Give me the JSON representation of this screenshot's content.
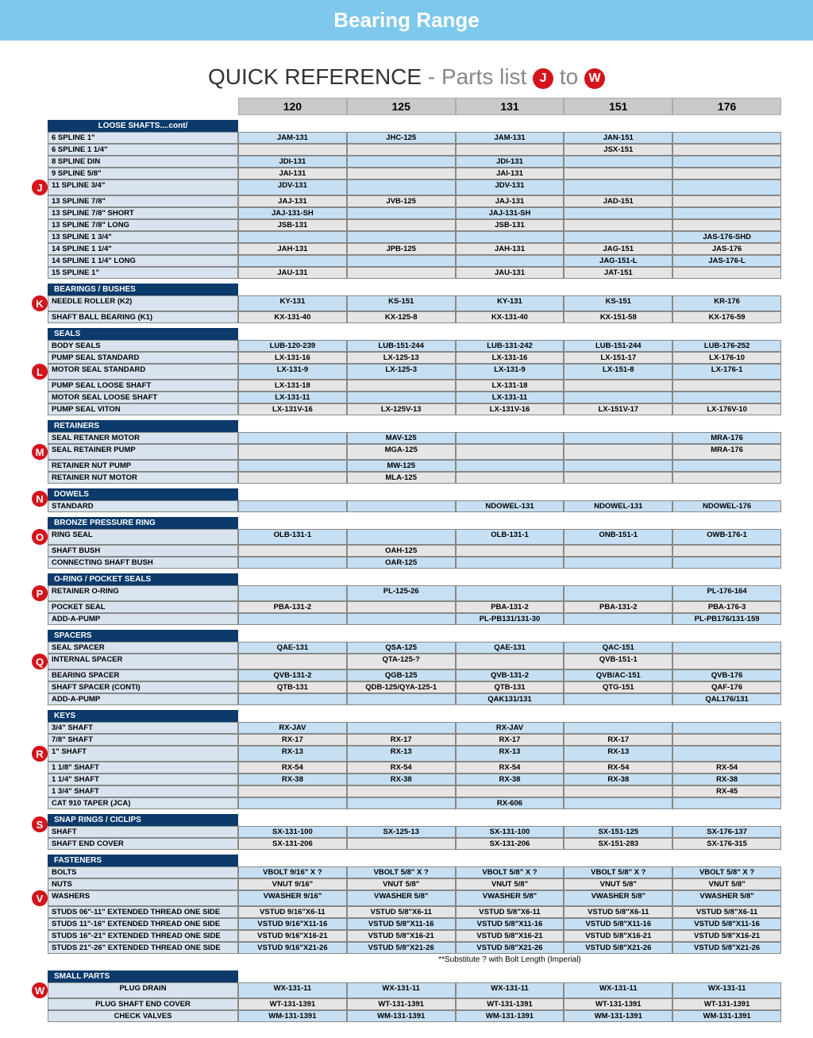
{
  "banner": "Bearing Range",
  "title_main": "QUICK REFERENCE",
  "title_sub": "- Parts list",
  "title_badge_from": "J",
  "title_to": "to",
  "title_badge_to": "W",
  "columns": [
    "120",
    "125",
    "131",
    "151",
    "176"
  ],
  "footnote": "**Substitute ? with Bolt Length (Imperial)",
  "colors": {
    "banner_bg": "#7ec8ed",
    "header_bg": "#0b3a6b",
    "badge_bg": "#d4131b",
    "cell_blue": "#c6dff2",
    "cell_grey": "#e5e5e5",
    "label_bg": "#d8e3ef",
    "colhdr_bg": "#c9c9c9"
  },
  "sections": [
    {
      "letter": "J",
      "letter_row": 4,
      "header": "LOOSE SHAFTS....cont/",
      "header_align": "center",
      "rows": [
        {
          "label": "6 SPLINE 1\"",
          "vals": [
            "JAM-131",
            "JHC-125",
            "JAM-131",
            "JAN-151",
            ""
          ],
          "shade": "blue"
        },
        {
          "label": "6 SPLINE 1 1/4\"",
          "vals": [
            "",
            "",
            "",
            "JSX-151",
            ""
          ],
          "shade": "grey"
        },
        {
          "label": "8 SPLINE DIN",
          "vals": [
            "JDI-131",
            "",
            "JDI-131",
            "",
            ""
          ],
          "shade": "blue"
        },
        {
          "label": "9 SPLINE 5/8\"",
          "vals": [
            "JAI-131",
            "",
            "JAI-131",
            "",
            ""
          ],
          "shade": "grey"
        },
        {
          "label": "11 SPLINE 3/4\"",
          "vals": [
            "JDV-131",
            "",
            "JDV-131",
            "",
            ""
          ],
          "shade": "blue"
        },
        {
          "label": "13 SPLINE 7/8\"",
          "vals": [
            "JAJ-131",
            "JVB-125",
            "JAJ-131",
            "JAD-151",
            ""
          ],
          "shade": "grey"
        },
        {
          "label": "13 SPLINE 7/8\" SHORT",
          "vals": [
            "JAJ-131-SH",
            "",
            "JAJ-131-SH",
            "",
            ""
          ],
          "shade": "blue"
        },
        {
          "label": "13 SPLINE 7/8\" LONG",
          "vals": [
            "JSB-131",
            "",
            "JSB-131",
            "",
            ""
          ],
          "shade": "grey"
        },
        {
          "label": "13 SPLINE 1 3/4\"",
          "vals": [
            "",
            "",
            "",
            "",
            "JAS-176-SHD"
          ],
          "shade": "blue"
        },
        {
          "label": "14 SPLINE 1 1/4\"",
          "vals": [
            "JAH-131",
            "JPB-125",
            "JAH-131",
            "JAG-151",
            "JAS-176"
          ],
          "shade": "grey"
        },
        {
          "label": "14 SPLINE 1 1/4\" LONG",
          "vals": [
            "",
            "",
            "",
            "JAG-151-L",
            "JAS-176-L"
          ],
          "shade": "blue"
        },
        {
          "label": "15 SPLINE 1\"",
          "vals": [
            "JAU-131",
            "",
            "JAU-131",
            "JAT-151",
            ""
          ],
          "shade": "grey"
        }
      ]
    },
    {
      "letter": "K",
      "letter_row": 0,
      "header": "BEARINGS / BUSHES",
      "header_align": "left",
      "rows": [
        {
          "label": "NEEDLE ROLLER (K2)",
          "vals": [
            "KY-131",
            "KS-151",
            "KY-131",
            "KS-151",
            "KR-176"
          ],
          "shade": "blue"
        },
        {
          "label": "SHAFT BALL BEARING (K1)",
          "vals": [
            "KX-131-40",
            "KX-125-8",
            "KX-131-40",
            "KX-151-58",
            "KX-176-59"
          ],
          "shade": "grey"
        }
      ]
    },
    {
      "letter": "L",
      "letter_row": 2,
      "header": "SEALS",
      "header_align": "left",
      "rows": [
        {
          "label": "BODY SEALS",
          "vals": [
            "LUB-120-239",
            "LUB-151-244",
            "LUB-131-242",
            "LUB-151-244",
            "LUB-176-252"
          ],
          "shade": "blue"
        },
        {
          "label": "PUMP SEAL STANDARD",
          "vals": [
            "LX-131-16",
            "LX-125-13",
            "LX-131-16",
            "LX-151-17",
            "LX-176-10"
          ],
          "shade": "grey"
        },
        {
          "label": "MOTOR SEAL STANDARD",
          "vals": [
            "LX-131-9",
            "LX-125-3",
            "LX-131-9",
            "LX-151-8",
            "LX-176-1"
          ],
          "shade": "blue"
        },
        {
          "label": "PUMP SEAL LOOSE SHAFT",
          "vals": [
            "LX-131-18",
            "",
            "LX-131-18",
            "",
            ""
          ],
          "shade": "grey"
        },
        {
          "label": "MOTOR SEAL LOOSE SHAFT",
          "vals": [
            "LX-131-11",
            "",
            "LX-131-11",
            "",
            ""
          ],
          "shade": "blue"
        },
        {
          "label": "PUMP SEAL VITON",
          "vals": [
            "LX-131V-16",
            "LX-125V-13",
            "LX-131V-16",
            "LX-151V-17",
            "LX-176V-10"
          ],
          "shade": "grey"
        }
      ]
    },
    {
      "letter": "M",
      "letter_row": 1,
      "header": "RETAINERS",
      "header_align": "left",
      "rows": [
        {
          "label": "SEAL RETANER MOTOR",
          "vals": [
            "",
            "MAV-125",
            "",
            "",
            "MRA-176"
          ],
          "shade": "blue"
        },
        {
          "label": "SEAL RETAINER PUMP",
          "vals": [
            "",
            "MGA-125",
            "",
            "",
            "MRA-176"
          ],
          "shade": "grey"
        },
        {
          "label": "RETAINER NUT PUMP",
          "vals": [
            "",
            "MW-125",
            "",
            "",
            ""
          ],
          "shade": "blue"
        },
        {
          "label": "RETAINER NUT MOTOR",
          "vals": [
            "",
            "MLA-125",
            "",
            "",
            ""
          ],
          "shade": "grey"
        }
      ]
    },
    {
      "letter": "N",
      "letter_row": -1,
      "header": "DOWELS",
      "header_align": "left",
      "rows": [
        {
          "label": "STANDARD",
          "vals": [
            "",
            "",
            "NDOWEL-131",
            "NDOWEL-131",
            "NDOWEL-176"
          ],
          "shade": "blue"
        }
      ]
    },
    {
      "letter": "O",
      "letter_row": 0,
      "header": "BRONZE PRESSURE RING",
      "header_align": "left",
      "rows": [
        {
          "label": "RING SEAL",
          "vals": [
            "OLB-131-1",
            "",
            "OLB-131-1",
            "ONB-151-1",
            "OWB-176-1"
          ],
          "shade": "blue"
        },
        {
          "label": "SHAFT BUSH",
          "vals": [
            "",
            "OAH-125",
            "",
            "",
            ""
          ],
          "shade": "grey"
        },
        {
          "label": "CONNECTING SHAFT BUSH",
          "vals": [
            "",
            "OAR-125",
            "",
            "",
            ""
          ],
          "shade": "blue"
        }
      ]
    },
    {
      "letter": "P",
      "letter_row": 0,
      "header": "O-RING / POCKET SEALS",
      "header_align": "left",
      "rows": [
        {
          "label": "RETAINER O-RING",
          "vals": [
            "",
            "PL-125-26",
            "",
            "",
            "PL-176-164"
          ],
          "shade": "blue"
        },
        {
          "label": "POCKET SEAL",
          "vals": [
            "PBA-131-2",
            "",
            "PBA-131-2",
            "PBA-131-2",
            "PBA-176-3"
          ],
          "shade": "grey"
        },
        {
          "label": "ADD-A-PUMP",
          "vals": [
            "",
            "",
            "PL-PB131/131-30",
            "",
            "PL-PB176/131-159"
          ],
          "shade": "blue"
        }
      ]
    },
    {
      "letter": "Q",
      "letter_row": 1,
      "header": "SPACERS",
      "header_align": "left",
      "rows": [
        {
          "label": "SEAL SPACER",
          "vals": [
            "QAE-131",
            "QSA-125",
            "QAE-131",
            "QAC-151",
            ""
          ],
          "shade": "blue"
        },
        {
          "label": "INTERNAL SPACER",
          "vals": [
            "",
            "QTA-125-?",
            "",
            "QVB-151-1",
            ""
          ],
          "shade": "grey"
        },
        {
          "label": "BEARING SPACER",
          "vals": [
            "QVB-131-2",
            "QGB-125",
            "QVB-131-2",
            "QVB/AC-151",
            "QVB-176"
          ],
          "shade": "blue"
        },
        {
          "label": "SHAFT SPACER (CONTI)",
          "vals": [
            "QTB-131",
            "QDB-125/QYA-125-1",
            "QTB-131",
            "QTG-151",
            "QAF-176"
          ],
          "shade": "grey"
        },
        {
          "label": "ADD-A-PUMP",
          "vals": [
            "",
            "",
            "QAK131/131",
            "",
            "QAL176/131"
          ],
          "shade": "blue"
        }
      ]
    },
    {
      "letter": "R",
      "letter_row": 2,
      "header": "KEYS",
      "header_align": "left",
      "rows": [
        {
          "label": "3/4\" SHAFT",
          "vals": [
            "RX-JAV",
            "",
            "RX-JAV",
            "",
            ""
          ],
          "shade": "blue"
        },
        {
          "label": "7/8\" SHAFT",
          "vals": [
            "RX-17",
            "RX-17",
            "RX-17",
            "RX-17",
            ""
          ],
          "shade": "grey"
        },
        {
          "label": "1\" SHAFT",
          "vals": [
            "RX-13",
            "RX-13",
            "RX-13",
            "RX-13",
            ""
          ],
          "shade": "blue"
        },
        {
          "label": "1 1/8\" SHAFT",
          "vals": [
            "RX-54",
            "RX-54",
            "RX-54",
            "RX-54",
            "RX-54"
          ],
          "shade": "grey"
        },
        {
          "label": "1 1/4\" SHAFT",
          "vals": [
            "RX-38",
            "RX-38",
            "RX-38",
            "RX-38",
            "RX-38"
          ],
          "shade": "blue"
        },
        {
          "label": "1 3/4\" SHAFT",
          "vals": [
            "",
            "",
            "",
            "",
            "RX-45"
          ],
          "shade": "grey"
        },
        {
          "label": "CAT 910 TAPER  (JCA)",
          "vals": [
            "",
            "",
            "RX-606",
            "",
            ""
          ],
          "shade": "blue"
        }
      ]
    },
    {
      "letter": "S",
      "letter_row": -1,
      "header": "SNAP RINGS / CICLIPS",
      "header_align": "left",
      "rows": [
        {
          "label": "SHAFT",
          "vals": [
            "SX-131-100",
            "SX-125-13",
            "SX-131-100",
            "SX-151-125",
            "SX-176-137"
          ],
          "shade": "blue"
        },
        {
          "label": "SHAFT END COVER",
          "vals": [
            "SX-131-206",
            "",
            "SX-131-206",
            "SX-151-283",
            "SX-176-315"
          ],
          "shade": "grey"
        }
      ]
    },
    {
      "letter": "V",
      "letter_row": 2,
      "header": "FASTENERS",
      "header_align": "left",
      "rows": [
        {
          "label": "BOLTS",
          "vals": [
            "VBOLT 9/16\" X ?",
            "VBOLT 5/8\" X ?",
            "VBOLT 5/8\" X ?",
            "VBOLT 5/8\" X ?",
            "VBOLT 5/8\" X ?"
          ],
          "shade": "blue"
        },
        {
          "label": "NUTS",
          "vals": [
            "VNUT 9/16\"",
            "VNUT 5/8\"",
            "VNUT 5/8\"",
            "VNUT 5/8\"",
            "VNUT 5/8\""
          ],
          "shade": "grey"
        },
        {
          "label": "WASHERS",
          "vals": [
            "VWASHER 9/16\"",
            "VWASHER 5/8\"",
            "VWASHER 5/8\"",
            "VWASHER 5/8\"",
            "VWASHER 5/8\""
          ],
          "shade": "blue"
        },
        {
          "label": "STUDS 06\"-11\" EXTENDED THREAD ONE SIDE",
          "vals": [
            "VSTUD 9/16\"X6-11",
            "VSTUD 5/8\"X6-11",
            "VSTUD 5/8\"X6-11",
            "VSTUD 5/8\"X6-11",
            "VSTUD 5/8\"X6-11"
          ],
          "shade": "grey"
        },
        {
          "label": "STUDS 11\"-16\" EXTENDED THREAD ONE SIDE",
          "vals": [
            "VSTUD 9/16\"X11-16",
            "VSTUD 5/8\"X11-16",
            "VSTUD 5/8\"X11-16",
            "VSTUD 5/8\"X11-16",
            "VSTUD 5/8\"X11-16"
          ],
          "shade": "blue"
        },
        {
          "label": "STUDS 16\"-21\" EXTENDED THREAD ONE SIDE",
          "vals": [
            "VSTUD 9/16\"X16-21",
            "VSTUD 5/8\"X16-21",
            "VSTUD 5/8\"X16-21",
            "VSTUD 5/8\"X16-21",
            "VSTUD 5/8\"X16-21"
          ],
          "shade": "grey"
        },
        {
          "label": "STUDS 21\"-26\" EXTENDED THREAD ONE SIDE",
          "vals": [
            "VSTUD 9/16\"X21-26",
            "VSTUD 5/8\"X21-26",
            "VSTUD 5/8\"X21-26",
            "VSTUD 5/8\"X21-26",
            "VSTUD 5/8\"X21-26"
          ],
          "shade": "blue"
        }
      ],
      "footnote_after": true
    },
    {
      "letter": "W",
      "letter_row": 0,
      "header": "SMALL PARTS",
      "header_align": "left",
      "rows": [
        {
          "label": "PLUG DRAIN",
          "label_align": "center",
          "vals": [
            "WX-131-11",
            "WX-131-11",
            "WX-131-11",
            "WX-131-11",
            "WX-131-11"
          ],
          "shade": "blue"
        },
        {
          "label": "PLUG SHAFT END COVER",
          "label_align": "center",
          "vals": [
            "WT-131-1391",
            "WT-131-1391",
            "WT-131-1391",
            "WT-131-1391",
            "WT-131-1391"
          ],
          "shade": "grey"
        },
        {
          "label": "CHECK VALVES",
          "label_align": "center",
          "vals": [
            "WM-131-1391",
            "WM-131-1391",
            "WM-131-1391",
            "WM-131-1391",
            "WM-131-1391"
          ],
          "shade": "blue"
        }
      ]
    }
  ]
}
